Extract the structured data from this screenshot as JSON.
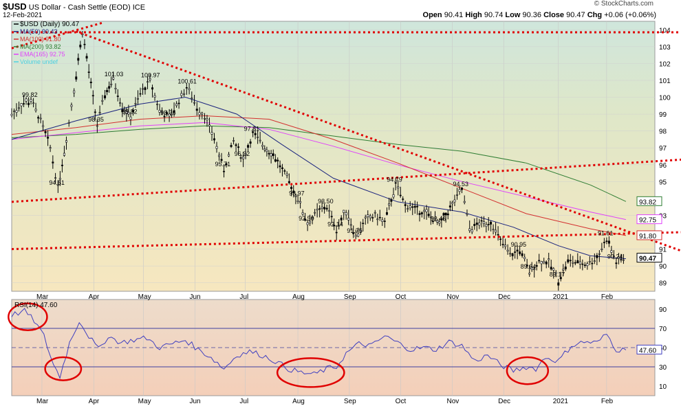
{
  "header": {
    "symbol": "$USD",
    "title": "US Dollar - Cash Settle (EOD) ICE",
    "date": "12-Feb-2021",
    "copyright": "© StockCharts.com",
    "open_label": "Open",
    "open": "90.41",
    "high_label": "High",
    "high": "90.74",
    "low_label": "Low",
    "low": "90.36",
    "close_label": "Close",
    "close": "90.47",
    "chg_label": "Chg",
    "chg": "+0.06 (+0.06%)"
  },
  "chart_data": [
    {
      "type": "candlestick",
      "legend": [
        {
          "label": "$USD (Daily) 90.47",
          "color": "#000000"
        },
        {
          "label": "MA(50) 90.43",
          "color": "#1a237e"
        },
        {
          "label": "MA(100) 91.80",
          "color": "#d32f2f"
        },
        {
          "label": "MA(200) 93.82",
          "color": "#2e7d32"
        },
        {
          "label": "EMA(165) 92.75",
          "color": "#e040fb"
        },
        {
          "label": "Volume undef",
          "color": "#4dd0e1"
        }
      ],
      "ylim": [
        88.5,
        104.5
      ],
      "y_ticks": [
        89,
        90,
        91,
        93,
        95,
        96,
        97,
        98,
        99,
        100,
        101,
        102,
        103,
        104
      ],
      "x_ticks": [
        "Mar",
        "Apr",
        "May",
        "Jun",
        "Jul",
        "Aug",
        "Sep",
        "Oct",
        "Nov",
        "Dec",
        "2021",
        "Feb"
      ],
      "price_path": [
        [
          0,
          99.0
        ],
        [
          0.015,
          99.6
        ],
        [
          0.03,
          99.8
        ],
        [
          0.045,
          98.6
        ],
        [
          0.06,
          97.0
        ],
        [
          0.072,
          94.61
        ],
        [
          0.085,
          97.5
        ],
        [
          0.097,
          100.5
        ],
        [
          0.11,
          103.9
        ],
        [
          0.12,
          101.5
        ],
        [
          0.133,
          98.35
        ],
        [
          0.145,
          100.2
        ],
        [
          0.158,
          101.03
        ],
        [
          0.172,
          99.4
        ],
        [
          0.185,
          98.82
        ],
        [
          0.2,
          100.2
        ],
        [
          0.215,
          100.97
        ],
        [
          0.23,
          99.2
        ],
        [
          0.245,
          98.76
        ],
        [
          0.26,
          99.8
        ],
        [
          0.272,
          100.61
        ],
        [
          0.288,
          99.4
        ],
        [
          0.3,
          98.9
        ],
        [
          0.315,
          97.5
        ],
        [
          0.33,
          95.71
        ],
        [
          0.345,
          97.4
        ],
        [
          0.36,
          96.32
        ],
        [
          0.375,
          97.81
        ],
        [
          0.39,
          97.2
        ],
        [
          0.41,
          96.4
        ],
        [
          0.428,
          95.2
        ],
        [
          0.445,
          93.97
        ],
        [
          0.46,
          92.5
        ],
        [
          0.475,
          93.2
        ],
        [
          0.49,
          93.5
        ],
        [
          0.505,
          92.14
        ],
        [
          0.52,
          93.3
        ],
        [
          0.535,
          91.75
        ],
        [
          0.55,
          92.7
        ],
        [
          0.565,
          93.0
        ],
        [
          0.58,
          92.6
        ],
        [
          0.597,
          94.79
        ],
        [
          0.612,
          93.6
        ],
        [
          0.627,
          93.4
        ],
        [
          0.645,
          93.1
        ],
        [
          0.665,
          92.46
        ],
        [
          0.685,
          93.6
        ],
        [
          0.7,
          94.53
        ],
        [
          0.712,
          92.2
        ],
        [
          0.727,
          92.5
        ],
        [
          0.745,
          92.6
        ],
        [
          0.76,
          91.5
        ],
        [
          0.775,
          90.6
        ],
        [
          0.79,
          90.95
        ],
        [
          0.805,
          89.64
        ],
        [
          0.82,
          90.3
        ],
        [
          0.835,
          90.2
        ],
        [
          0.85,
          89.17
        ],
        [
          0.865,
          90.3
        ],
        [
          0.88,
          90.2
        ],
        [
          0.895,
          90.1
        ],
        [
          0.91,
          90.5
        ],
        [
          0.925,
          91.61
        ],
        [
          0.94,
          90.24
        ],
        [
          0.955,
          90.47
        ]
      ],
      "price_labels": [
        {
          "text": "99.82",
          "x": 0.03,
          "y": 99.82
        },
        {
          "text": "94.61",
          "x": 0.072,
          "y": 94.61
        },
        {
          "text": "101.03",
          "x": 0.158,
          "y": 101.03
        },
        {
          "text": "98.35",
          "x": 0.133,
          "y": 98.35
        },
        {
          "text": "98.82",
          "x": 0.185,
          "y": 98.82
        },
        {
          "text": "100.97",
          "x": 0.215,
          "y": 100.97
        },
        {
          "text": "98.76",
          "x": 0.245,
          "y": 98.76
        },
        {
          "text": "100.61",
          "x": 0.272,
          "y": 100.61
        },
        {
          "text": "95.71",
          "x": 0.33,
          "y": 95.71
        },
        {
          "text": "96.32",
          "x": 0.36,
          "y": 96.32
        },
        {
          "text": "97.81",
          "x": 0.375,
          "y": 97.81
        },
        {
          "text": "93.97",
          "x": 0.445,
          "y": 93.97
        },
        {
          "text": "92.50",
          "x": 0.46,
          "y": 92.5
        },
        {
          "text": "93.50",
          "x": 0.49,
          "y": 93.5
        },
        {
          "text": "92.14",
          "x": 0.505,
          "y": 92.14
        },
        {
          "text": "91.75",
          "x": 0.535,
          "y": 91.75
        },
        {
          "text": "94.79",
          "x": 0.597,
          "y": 94.79
        },
        {
          "text": "92.46",
          "x": 0.665,
          "y": 92.46
        },
        {
          "text": "94.53",
          "x": 0.7,
          "y": 94.53
        },
        {
          "text": "90.95",
          "x": 0.79,
          "y": 90.95
        },
        {
          "text": "89.64",
          "x": 0.805,
          "y": 89.64
        },
        {
          "text": "89.17",
          "x": 0.85,
          "y": 89.17
        },
        {
          "text": "91.61",
          "x": 0.925,
          "y": 91.61
        },
        {
          "text": "90.24",
          "x": 0.94,
          "y": 90.24
        }
      ],
      "ma50": [
        [
          0,
          97.5
        ],
        [
          0.1,
          98.6
        ],
        [
          0.2,
          99.6
        ],
        [
          0.27,
          100.0
        ],
        [
          0.35,
          99.0
        ],
        [
          0.42,
          97.2
        ],
        [
          0.5,
          95.2
        ],
        [
          0.6,
          93.8
        ],
        [
          0.7,
          93.2
        ],
        [
          0.78,
          92.3
        ],
        [
          0.85,
          91.2
        ],
        [
          0.9,
          90.6
        ],
        [
          0.955,
          90.43
        ]
      ],
      "ma100": [
        [
          0,
          97.8
        ],
        [
          0.1,
          98.2
        ],
        [
          0.2,
          98.7
        ],
        [
          0.3,
          98.9
        ],
        [
          0.4,
          98.7
        ],
        [
          0.5,
          97.5
        ],
        [
          0.6,
          96.1
        ],
        [
          0.7,
          94.6
        ],
        [
          0.8,
          93.1
        ],
        [
          0.9,
          92.2
        ],
        [
          0.955,
          91.8
        ]
      ],
      "ma200": [
        [
          0,
          97.6
        ],
        [
          0.1,
          97.8
        ],
        [
          0.2,
          98.1
        ],
        [
          0.3,
          98.3
        ],
        [
          0.4,
          98.2
        ],
        [
          0.5,
          97.7
        ],
        [
          0.6,
          97.2
        ],
        [
          0.7,
          96.8
        ],
        [
          0.8,
          96.1
        ],
        [
          0.9,
          94.8
        ],
        [
          0.955,
          93.82
        ]
      ],
      "ema165": [
        [
          0,
          97.5
        ],
        [
          0.1,
          97.9
        ],
        [
          0.2,
          98.3
        ],
        [
          0.3,
          98.5
        ],
        [
          0.4,
          98.1
        ],
        [
          0.5,
          97.1
        ],
        [
          0.6,
          96.0
        ],
        [
          0.7,
          95.0
        ],
        [
          0.8,
          94.1
        ],
        [
          0.9,
          93.2
        ],
        [
          0.955,
          92.75
        ]
      ],
      "trendlines": [
        {
          "name": "resistance-flat",
          "from": [
            0,
            103.85
          ],
          "to": [
            1,
            103.85
          ]
        },
        {
          "name": "upper-channel",
          "from": [
            0,
            102.9
          ],
          "to": [
            0.14,
            104.4
          ]
        },
        {
          "name": "downtrend",
          "from": [
            0.1,
            103.9
          ],
          "to": [
            1,
            90.9
          ]
        },
        {
          "name": "upper-rising",
          "from": [
            0,
            93.8
          ],
          "to": [
            1,
            96.3
          ]
        },
        {
          "name": "lower-rising",
          "from": [
            0,
            91.0
          ],
          "to": [
            1,
            92.0
          ]
        }
      ],
      "right_tags": [
        {
          "text": "93.82",
          "y": 93.82,
          "color": "#2e7d32"
        },
        {
          "text": "92.75",
          "y": 92.75,
          "color": "#e040fb"
        },
        {
          "text": "91.80",
          "y": 91.8,
          "color": "#d32f2f"
        },
        {
          "text": "90.47",
          "y": 90.47,
          "color": "#000000"
        }
      ]
    },
    {
      "type": "line",
      "legend": "RSI(14) 47.60",
      "ylim": [
        0,
        100
      ],
      "y_ticks": [
        10,
        30,
        50,
        70,
        90
      ],
      "value_tag": "47.60",
      "reference_lines": [
        30,
        50,
        70
      ],
      "x_ticks": [
        "Mar",
        "Apr",
        "May",
        "Jun",
        "Jul",
        "Aug",
        "Sep",
        "Oct",
        "Nov",
        "Dec",
        "2021",
        "Feb"
      ],
      "rsi_path": [
        [
          0,
          84
        ],
        [
          0.02,
          88
        ],
        [
          0.035,
          78
        ],
        [
          0.05,
          62
        ],
        [
          0.065,
          32
        ],
        [
          0.075,
          20
        ],
        [
          0.09,
          55
        ],
        [
          0.105,
          78
        ],
        [
          0.12,
          62
        ],
        [
          0.135,
          48
        ],
        [
          0.15,
          62
        ],
        [
          0.17,
          55
        ],
        [
          0.19,
          58
        ],
        [
          0.21,
          60
        ],
        [
          0.23,
          50
        ],
        [
          0.25,
          54
        ],
        [
          0.27,
          58
        ],
        [
          0.29,
          48
        ],
        [
          0.31,
          40
        ],
        [
          0.33,
          28
        ],
        [
          0.35,
          42
        ],
        [
          0.37,
          46
        ],
        [
          0.39,
          42
        ],
        [
          0.41,
          36
        ],
        [
          0.43,
          28
        ],
        [
          0.45,
          24
        ],
        [
          0.47,
          22
        ],
        [
          0.49,
          28
        ],
        [
          0.505,
          30
        ],
        [
          0.52,
          44
        ],
        [
          0.54,
          54
        ],
        [
          0.56,
          52
        ],
        [
          0.58,
          62
        ],
        [
          0.6,
          55
        ],
        [
          0.62,
          48
        ],
        [
          0.64,
          50
        ],
        [
          0.66,
          48
        ],
        [
          0.68,
          56
        ],
        [
          0.7,
          52
        ],
        [
          0.72,
          36
        ],
        [
          0.74,
          42
        ],
        [
          0.76,
          32
        ],
        [
          0.78,
          26
        ],
        [
          0.8,
          30
        ],
        [
          0.815,
          28
        ],
        [
          0.83,
          40
        ],
        [
          0.85,
          36
        ],
        [
          0.87,
          52
        ],
        [
          0.89,
          56
        ],
        [
          0.91,
          55
        ],
        [
          0.925,
          64
        ],
        [
          0.94,
          48
        ],
        [
          0.955,
          47.6
        ]
      ],
      "circles": [
        {
          "cx": 0.025,
          "cy": 82,
          "rx": 0.03,
          "ry": 14
        },
        {
          "cx": 0.08,
          "cy": 28,
          "rx": 0.028,
          "ry": 12
        },
        {
          "cx": 0.465,
          "cy": 24,
          "rx": 0.052,
          "ry": 15
        },
        {
          "cx": 0.802,
          "cy": 26,
          "rx": 0.032,
          "ry": 14
        }
      ]
    }
  ]
}
